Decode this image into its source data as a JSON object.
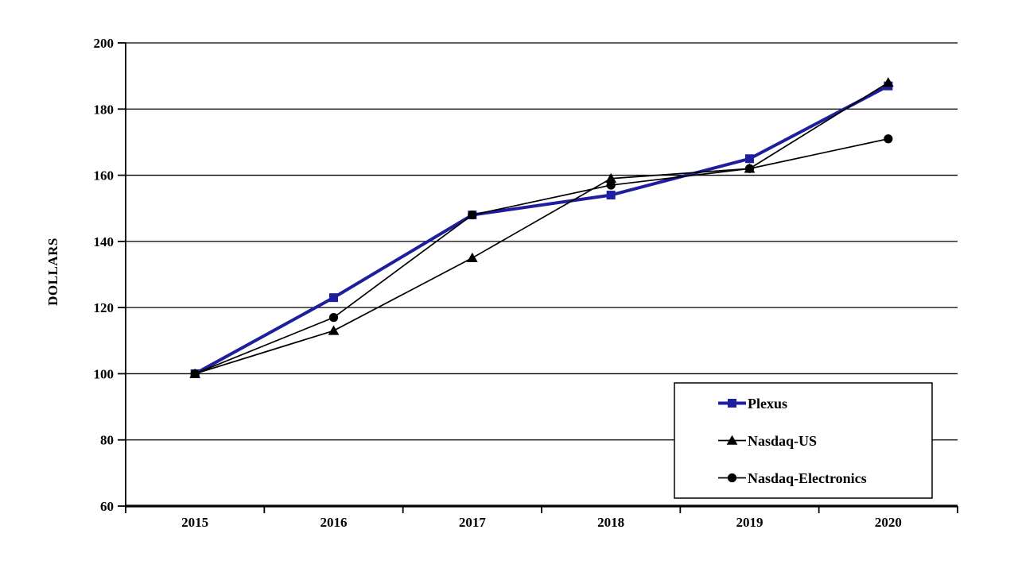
{
  "figure": {
    "background": "#ffffff"
  },
  "chart_data": {
    "type": "line",
    "title": "",
    "xlabel": "",
    "ylabel": "DOLLARS",
    "categories": [
      "2015",
      "2016",
      "2017",
      "2018",
      "2019",
      "2020"
    ],
    "series": [
      {
        "name": "Plexus",
        "marker": "square",
        "color": "#1e1e9e",
        "line_width": 4,
        "values": [
          100,
          123,
          148,
          154,
          165,
          187
        ]
      },
      {
        "name": "Nasdaq-US",
        "marker": "triangle",
        "color": "#000000",
        "line_width": 1.7,
        "values": [
          100,
          113,
          135,
          159,
          162,
          188
        ]
      },
      {
        "name": "Nasdaq-Electronics",
        "marker": "circle",
        "color": "#000000",
        "line_width": 1.7,
        "values": [
          100,
          117,
          148,
          157,
          162,
          171
        ]
      }
    ],
    "ylim": [
      60,
      200
    ],
    "yticks": [
      60,
      80,
      100,
      120,
      140,
      160,
      180,
      200
    ],
    "grid": "horizontal-only",
    "axis_color": "#000000",
    "legend": {
      "position": "bottom-right",
      "entries": [
        "Plexus",
        "Nasdaq-US",
        "Nasdaq-Electronics"
      ]
    }
  }
}
